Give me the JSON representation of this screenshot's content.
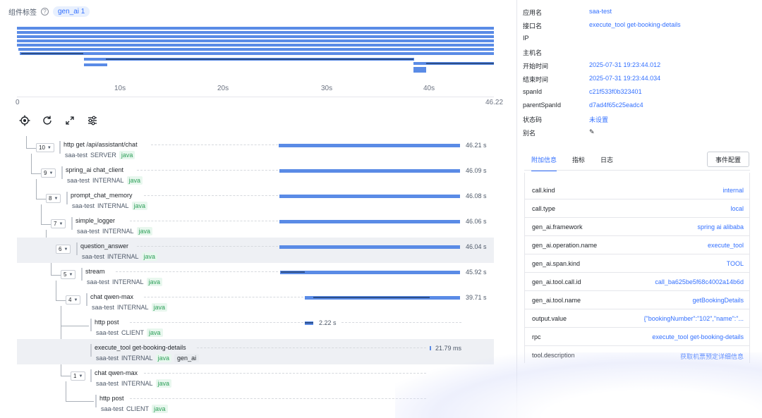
{
  "tags": {
    "label": "组件标签",
    "help": "?",
    "pill": "gen_ai 1"
  },
  "overview": {
    "ticks": [
      "0",
      "10s",
      "20s",
      "30s",
      "40s",
      "46.22"
    ]
  },
  "toolbar": {
    "locate": "locate-icon",
    "refresh": "refresh-icon",
    "expand": "expand-icon",
    "settings": "sliders-icon"
  },
  "spans": [
    {
      "count": "10",
      "name": "http get /api/assistant/chat",
      "app": "saa-test",
      "kind": "SERVER",
      "lang": "java",
      "duration": "46.21 s"
    },
    {
      "count": "9",
      "name": "spring_ai chat_client",
      "app": "saa-test",
      "kind": "INTERNAL",
      "lang": "java",
      "duration": "46.09 s"
    },
    {
      "count": "8",
      "name": "prompt_chat_memory",
      "app": "saa-test",
      "kind": "INTERNAL",
      "lang": "java",
      "duration": "46.08 s"
    },
    {
      "count": "7",
      "name": "simple_logger",
      "app": "saa-test",
      "kind": "INTERNAL",
      "lang": "java",
      "duration": "46.06 s"
    },
    {
      "count": "6",
      "name": "question_answer",
      "app": "saa-test",
      "kind": "INTERNAL",
      "lang": "java",
      "duration": "46.04 s"
    },
    {
      "count": "5",
      "name": "stream",
      "app": "saa-test",
      "kind": "INTERNAL",
      "lang": "java",
      "duration": "45.92 s"
    },
    {
      "count": "4",
      "name": "chat qwen-max",
      "app": "saa-test",
      "kind": "INTERNAL",
      "lang": "java",
      "duration": "39.71 s"
    },
    {
      "count": "",
      "name": "http post",
      "app": "saa-test",
      "kind": "CLIENT",
      "lang": "java",
      "duration": "2.22 s"
    },
    {
      "count": "",
      "name": "execute_tool get-booking-details",
      "app": "saa-test",
      "kind": "INTERNAL",
      "lang": "java",
      "tag": "gen_ai",
      "duration": "21.79 ms"
    },
    {
      "count": "1",
      "name": "chat qwen-max",
      "app": "saa-test",
      "kind": "INTERNAL",
      "lang": "java",
      "duration": ""
    },
    {
      "count": "",
      "name": "http post",
      "app": "saa-test",
      "kind": "CLIENT",
      "lang": "java",
      "duration": ""
    }
  ],
  "detail": {
    "fields": [
      {
        "k": "应用名",
        "v": "saa-test"
      },
      {
        "k": "接口名",
        "v": "execute_tool get-booking-details"
      },
      {
        "k": "IP",
        "v": ""
      },
      {
        "k": "主机名",
        "v": ""
      },
      {
        "k": "开始时间",
        "v": "2025-07-31 19:23:44.012"
      },
      {
        "k": "结束时间",
        "v": "2025-07-31 19:23:44.034"
      },
      {
        "k": "spanId",
        "v": "c21f533f0b323401"
      },
      {
        "k": "parentSpanId",
        "v": "d7ad4f65c25eadc4"
      },
      {
        "k": "状态码",
        "v": "未设置"
      },
      {
        "k": "别名",
        "v": ""
      }
    ],
    "tabs": [
      "附加信息",
      "指标",
      "日志"
    ],
    "event_button": "事件配置",
    "attributes": [
      {
        "k": "call.kind",
        "v": "internal"
      },
      {
        "k": "call.type",
        "v": "local"
      },
      {
        "k": "gen_ai.framework",
        "v": "spring ai alibaba"
      },
      {
        "k": "gen_ai.operation.name",
        "v": "execute_tool"
      },
      {
        "k": "gen_ai.span.kind",
        "v": "TOOL"
      },
      {
        "k": "gen_ai.tool.call.id",
        "v": "call_ba625be5f68c4002a14b6d"
      },
      {
        "k": "gen_ai.tool.name",
        "v": "getBookingDetails"
      },
      {
        "k": "output.value",
        "v": "{\"bookingNumber\":\"102\",\"name\":\"..."
      },
      {
        "k": "rpc",
        "v": "execute_tool get-booking-details"
      },
      {
        "k": "tool.description",
        "v": "获取机票预定详细信息"
      }
    ]
  },
  "colors": {
    "bar": "#5a8be6",
    "bar_dark": "#2d4f8a",
    "link": "#3370ff",
    "java": "#2ea05a"
  }
}
